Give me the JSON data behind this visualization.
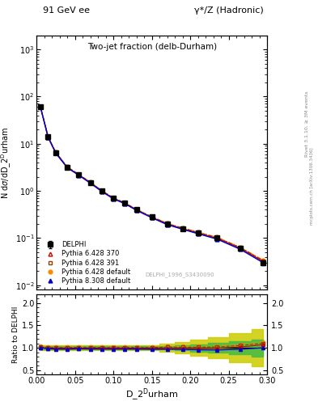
{
  "title_left": "91 GeV ee",
  "title_right": "γ*/Z (Hadronic)",
  "plot_title": "Two-jet fraction (delb-Durham)",
  "ylabel_main": "N dσ/dD_2ᴰurham",
  "ylabel_ratio": "Ratio to DELPHI",
  "xlabel": "D_2ᴰurham",
  "right_label1": "Rivet 3.1.10, ≥ 3M events",
  "right_label2": "mcplots.cern.ch [arXiv:1306.3436]",
  "watermark": "DELPHI_1996_S3430090",
  "x_data": [
    0.005,
    0.015,
    0.025,
    0.04,
    0.055,
    0.07,
    0.085,
    0.1,
    0.115,
    0.13,
    0.15,
    0.17,
    0.19,
    0.21,
    0.235,
    0.265,
    0.295
  ],
  "delphi_y": [
    60.0,
    14.0,
    6.5,
    3.2,
    2.2,
    1.5,
    1.0,
    0.7,
    0.55,
    0.4,
    0.28,
    0.2,
    0.16,
    0.13,
    0.1,
    0.06,
    0.03
  ],
  "delphi_yerr": [
    3.0,
    0.7,
    0.3,
    0.15,
    0.1,
    0.07,
    0.05,
    0.035,
    0.027,
    0.02,
    0.014,
    0.01,
    0.008,
    0.007,
    0.005,
    0.004,
    0.003
  ],
  "py6_370_y": [
    60.5,
    13.8,
    6.4,
    3.15,
    2.18,
    1.48,
    0.99,
    0.695,
    0.545,
    0.395,
    0.275,
    0.198,
    0.158,
    0.128,
    0.099,
    0.061,
    0.032
  ],
  "py6_391_y": [
    61.0,
    14.1,
    6.55,
    3.22,
    2.22,
    1.51,
    1.01,
    0.705,
    0.555,
    0.402,
    0.282,
    0.203,
    0.162,
    0.132,
    0.102,
    0.063,
    0.033
  ],
  "py6_def_y": [
    62.0,
    14.3,
    6.6,
    3.25,
    2.25,
    1.53,
    1.02,
    0.715,
    0.56,
    0.406,
    0.285,
    0.206,
    0.165,
    0.134,
    0.104,
    0.064,
    0.034
  ],
  "py8_def_y": [
    60.2,
    13.7,
    6.3,
    3.1,
    2.15,
    1.46,
    0.97,
    0.68,
    0.535,
    0.388,
    0.27,
    0.193,
    0.154,
    0.124,
    0.095,
    0.058,
    0.03
  ],
  "ratio_py6_370": [
    1.005,
    0.985,
    0.985,
    0.985,
    0.99,
    0.987,
    0.99,
    0.993,
    0.99,
    0.988,
    0.982,
    0.99,
    0.988,
    0.985,
    0.99,
    1.017,
    1.067
  ],
  "ratio_py6_391": [
    1.017,
    1.007,
    1.008,
    1.006,
    1.009,
    1.007,
    1.01,
    1.007,
    1.009,
    1.005,
    1.007,
    1.015,
    1.0125,
    1.015,
    1.02,
    1.05,
    1.1
  ],
  "ratio_py6_def": [
    1.033,
    1.022,
    1.015,
    1.016,
    1.023,
    1.02,
    1.02,
    1.021,
    1.018,
    1.015,
    1.018,
    1.03,
    1.031,
    1.031,
    1.04,
    1.067,
    1.133
  ],
  "ratio_py8_def": [
    1.003,
    0.979,
    0.969,
    0.969,
    0.977,
    0.973,
    0.97,
    0.971,
    0.972,
    0.97,
    0.964,
    0.965,
    0.963,
    0.954,
    0.95,
    0.967,
    1.0
  ],
  "green_band_lo": [
    0.97,
    0.97,
    0.97,
    0.97,
    0.97,
    0.97,
    0.97,
    0.97,
    0.97,
    0.97,
    0.97,
    0.96,
    0.945,
    0.92,
    0.895,
    0.85,
    0.81
  ],
  "green_band_hi": [
    1.03,
    1.03,
    1.03,
    1.03,
    1.03,
    1.03,
    1.03,
    1.03,
    1.03,
    1.03,
    1.03,
    1.04,
    1.055,
    1.08,
    1.105,
    1.15,
    1.19
  ],
  "yellow_band_lo": [
    0.94,
    0.94,
    0.94,
    0.94,
    0.94,
    0.94,
    0.94,
    0.94,
    0.94,
    0.94,
    0.94,
    0.91,
    0.875,
    0.82,
    0.76,
    0.67,
    0.59
  ],
  "yellow_band_hi": [
    1.06,
    1.06,
    1.06,
    1.06,
    1.06,
    1.06,
    1.06,
    1.06,
    1.06,
    1.06,
    1.06,
    1.09,
    1.125,
    1.18,
    1.24,
    1.33,
    1.41
  ],
  "color_delphi": "#000000",
  "color_py6_370": "#cc0000",
  "color_py6_391": "#884400",
  "color_py6_def": "#ff8800",
  "color_py8_def": "#0000cc",
  "color_green": "#44bb44",
  "color_yellow": "#cccc00",
  "xlim": [
    0.0,
    0.3
  ],
  "ylim_main": [
    0.008,
    2000.0
  ],
  "ylim_ratio": [
    0.4,
    2.2
  ],
  "ratio_yticks": [
    0.5,
    1.0,
    1.5,
    2.0
  ]
}
